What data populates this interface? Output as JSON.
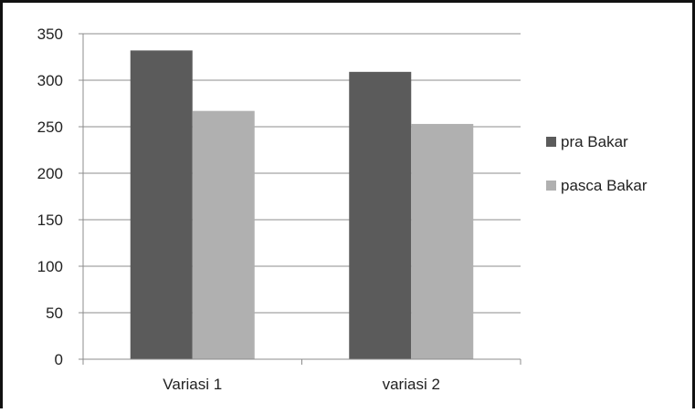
{
  "chart_data": {
    "type": "bar",
    "categories": [
      "Variasi 1",
      "variasi 2"
    ],
    "series": [
      {
        "name": "pra Bakar",
        "values": [
          332,
          309
        ],
        "color": "#5b5b5b"
      },
      {
        "name": "pasca Bakar",
        "values": [
          267,
          253
        ],
        "color": "#b0b0b0"
      }
    ],
    "ylim": [
      0,
      350
    ],
    "yticks": [
      "0",
      "50",
      "100",
      "150",
      "200",
      "250",
      "300",
      "350"
    ],
    "grid": true,
    "legend_position": "right",
    "title": "",
    "xlabel": "",
    "ylabel": ""
  }
}
